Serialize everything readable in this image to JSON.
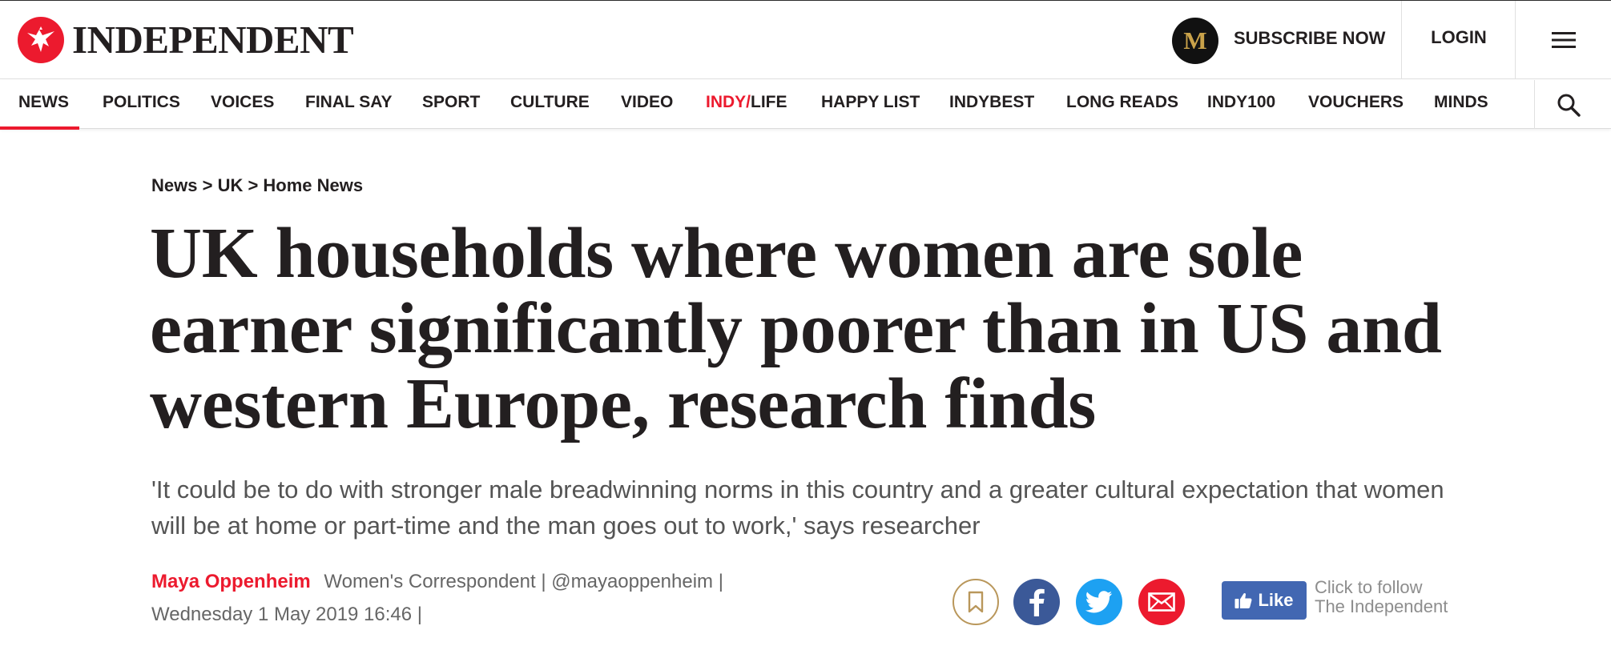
{
  "header": {
    "brand": "INDEPENDENT",
    "m_badge": "M",
    "subscribe_label": "SUBSCRIBE NOW",
    "login_label": "LOGIN"
  },
  "nav": {
    "items": [
      "NEWS",
      "POLITICS",
      "VOICES",
      "FINAL SAY",
      "SPORT",
      "CULTURE",
      "VIDEO",
      "INDY/LIFE",
      "HAPPY LIST",
      "INDYBEST",
      "LONG READS",
      "INDY100",
      "VOUCHERS",
      "MINDS"
    ],
    "indy_life_prefix": "INDY/",
    "indy_life_suffix": "LIFE",
    "active": "NEWS"
  },
  "article": {
    "breadcrumb": [
      "News",
      "UK",
      "Home News"
    ],
    "breadcrumb_sep": " > ",
    "headline": "UK households where women are sole earner significantly poorer than in US and western Europe, research finds",
    "standfirst": "'It could be to do with stronger male breadwinning norms in this country and a greater cultural expectation that women will be at home or part-time and the man goes out to work,' says researcher",
    "author": "Maya Oppenheim",
    "role": "Women's Correspondent |",
    "handle": "@mayaoppenheim",
    "handle_sep": "|",
    "date": "Wednesday 1 May 2019 16:46",
    "date_sep": "|"
  },
  "social": {
    "like_label": "Like",
    "follow_line1": "Click to follow",
    "follow_line2": "The Independent"
  },
  "colors": {
    "brand_red": "#ec1a2e",
    "text": "#231f20",
    "facebook": "#3b5998",
    "twitter": "#1da1f2",
    "fb_like": "#4267b2",
    "bookmark_gold": "#b9975b"
  },
  "icons": [
    "independent-eagle-icon",
    "hamburger-menu-icon",
    "search-icon",
    "bookmark-icon",
    "facebook-icon",
    "twitter-icon",
    "email-icon",
    "thumbs-up-icon"
  ]
}
